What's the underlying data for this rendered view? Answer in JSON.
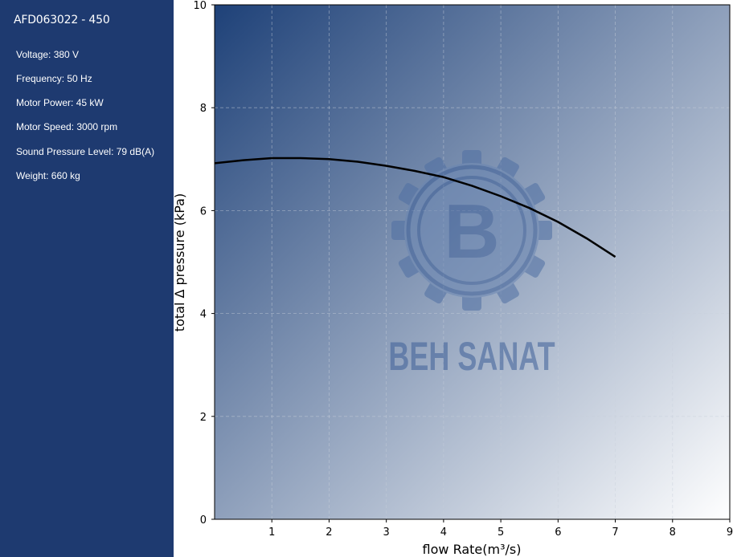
{
  "sidebar": {
    "model": "AFD063022 - 450",
    "specs": [
      "Voltage: 380 V",
      "Frequency: 50 Hz",
      "Motor Power: 45 kW",
      "Motor Speed: 3000 rpm",
      "Sound Pressure Level: 79 dB(A)",
      "Weight: 660 kg"
    ]
  },
  "watermark": {
    "text": "BEH SANAT",
    "letter": "B",
    "icon": "gear-logo-icon"
  },
  "colors": {
    "sidebar": "#1e3a70",
    "gradient_start": "#1e4178",
    "gradient_end": "#ffffff",
    "curve": "#000000"
  },
  "chart_data": {
    "type": "line",
    "xlabel": "flow Rate(m³/s)",
    "ylabel": "total Δ pressure (kPa)",
    "xlim": [
      0,
      9
    ],
    "ylim": [
      0,
      10
    ],
    "xticks": [
      1,
      2,
      3,
      4,
      5,
      6,
      7,
      8,
      9
    ],
    "yticks": [
      0,
      2,
      4,
      6,
      8,
      10
    ],
    "grid": true,
    "series": [
      {
        "x": [
          0,
          0.5,
          1,
          1.5,
          2,
          2.5,
          3,
          3.5,
          4,
          4.5,
          5,
          5.5,
          6,
          6.5,
          7
        ],
        "y": [
          6.92,
          6.98,
          7.02,
          7.02,
          7.0,
          6.95,
          6.87,
          6.77,
          6.65,
          6.48,
          6.28,
          6.05,
          5.78,
          5.46,
          5.1
        ]
      }
    ]
  }
}
